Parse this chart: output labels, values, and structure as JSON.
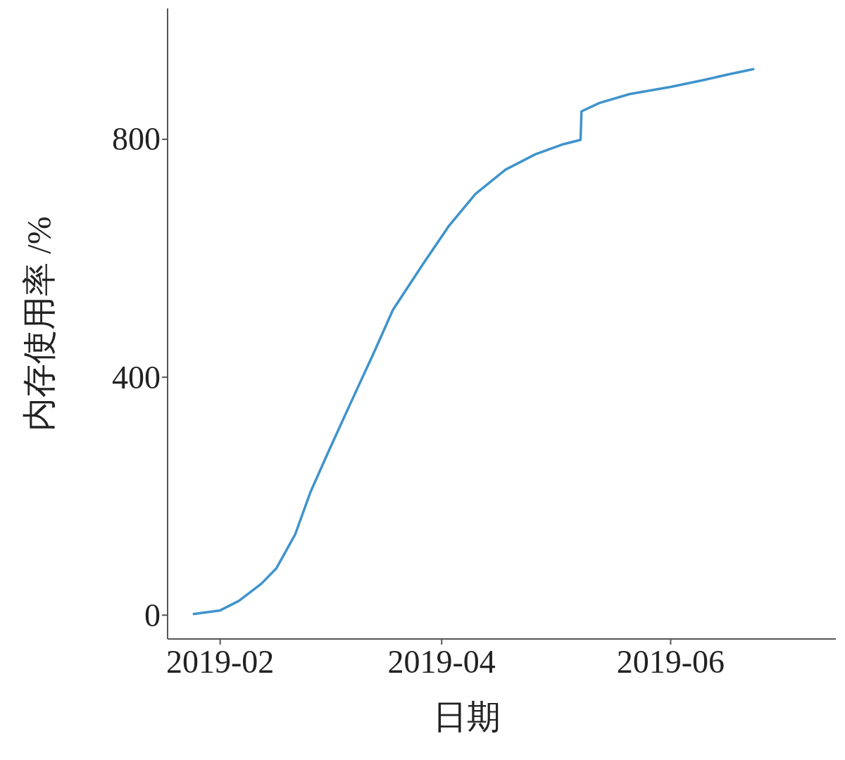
{
  "chart_data": {
    "type": "line",
    "xlabel": "日期",
    "ylabel": "内存使用率 /%",
    "x": [
      "2019-01-25",
      "2019-02-01",
      "2019-02-06",
      "2019-02-12",
      "2019-02-16",
      "2019-02-21",
      "2019-02-25",
      "2019-03-02",
      "2019-03-08",
      "2019-03-14",
      "2019-03-19",
      "2019-03-27",
      "2019-04-03",
      "2019-04-10",
      "2019-04-18",
      "2019-04-26",
      "2019-05-03",
      "2019-05-08T00:00",
      "2019-05-08T06:00",
      "2019-05-13",
      "2019-05-21",
      "2019-06-01",
      "2019-06-10",
      "2019-06-17",
      "2019-06-23"
    ],
    "series": [
      {
        "color": "#3f93cc",
        "values": [
          2,
          8,
          24,
          53,
          79,
          136,
          206,
          277,
          360,
          442,
          513,
          590,
          655,
          708,
          749,
          775,
          791,
          799,
          847,
          861,
          876,
          888,
          900,
          910,
          918
        ]
      }
    ],
    "xlim": [
      "2019-01-18",
      "2019-07-15"
    ],
    "ylim": [
      -40,
      1020
    ],
    "xticks": [
      "2019-02",
      "2019-04",
      "2019-06"
    ],
    "yticks": [
      0,
      400,
      800
    ]
  }
}
